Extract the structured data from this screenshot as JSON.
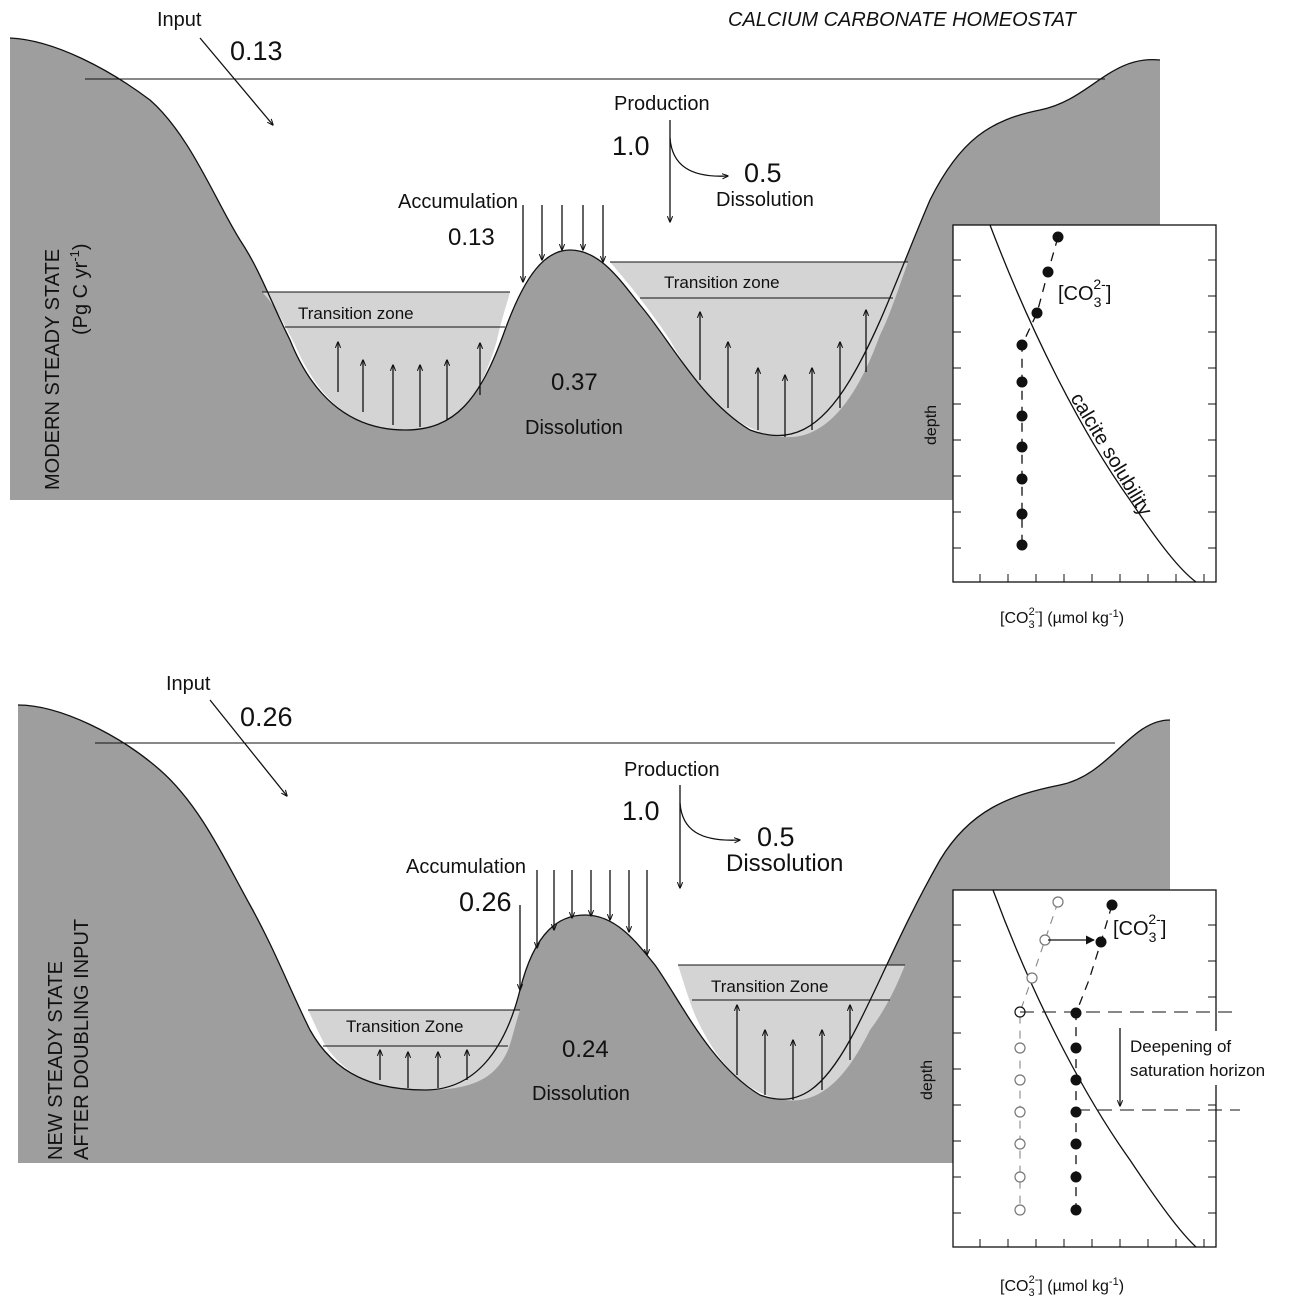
{
  "title": "CALCIUM CARBONATE HOMEOSTAT",
  "panels": [
    {
      "side_label_1": "MODERN STEADY STATE",
      "side_label_2": "(Pg C yr",
      "side_label_2_sup": "-1",
      "side_label_2_end": ")",
      "input_label": "Input",
      "input_value": "0.13",
      "production_label": "Production",
      "production_value": "1.0",
      "surface_dissolution_value": "0.5",
      "surface_dissolution_label": "Dissolution",
      "accumulation_label": "Accumulation",
      "accumulation_value": "0.13",
      "deep_dissolution_value": "0.37",
      "deep_dissolution_label": "Dissolution",
      "transition_zone_left": "Transition zone",
      "transition_zone_right": "Transition zone",
      "inset": {
        "ylabel": "depth",
        "xlabel_pre": "[CO",
        "xlabel_sub": "3",
        "xlabel_sup": "2-",
        "xlabel_post": "]  (µmol kg",
        "xlabel_unit_sup": "-1",
        "xlabel_end": ")",
        "series_label_pre": "[CO",
        "series_label_sub": "3",
        "series_label_sup": "2-",
        "series_label_post": "]",
        "curve_label": "calcite solubility"
      }
    },
    {
      "side_label_1": "NEW STEADY STATE",
      "side_label_2": "AFTER DOUBLING INPUT",
      "input_label": "Input",
      "input_value": "0.26",
      "production_label": "Production",
      "production_value": "1.0",
      "surface_dissolution_value": "0.5",
      "surface_dissolution_label": "Dissolution",
      "accumulation_label": "Accumulation",
      "accumulation_value": "0.26",
      "deep_dissolution_value": "0.24",
      "deep_dissolution_label": "Dissolution",
      "transition_zone_left": "Transition Zone",
      "transition_zone_right": "Transition Zone",
      "inset": {
        "ylabel": "depth",
        "xlabel_pre": "[CO",
        "xlabel_sub": "3",
        "xlabel_sup": "2-",
        "xlabel_post": "]  (µmol kg",
        "xlabel_unit_sup": "-1",
        "xlabel_end": ")",
        "series_label_pre": "[CO",
        "series_label_sub": "3",
        "series_label_sup": "2-",
        "series_label_post": "]",
        "annotation_1": "Deepening of",
        "annotation_2": "saturation horizon"
      }
    }
  ],
  "colors": {
    "seafloor": "#9e9e9e",
    "transition": "#d4d4d4",
    "water": "#ffffff",
    "ink": "#111111"
  }
}
